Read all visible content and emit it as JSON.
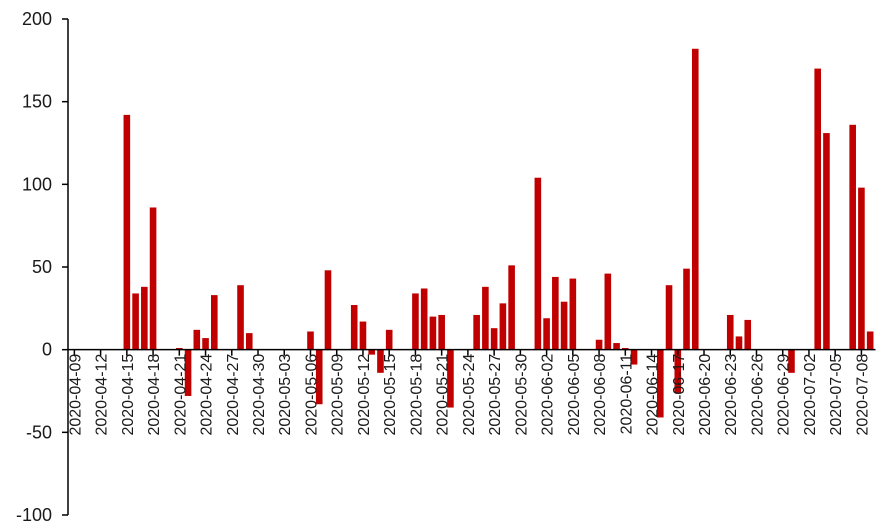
{
  "chart_data": {
    "type": "bar",
    "title": "",
    "xlabel": "",
    "ylabel": "",
    "ylim": [
      -100,
      200
    ],
    "yticks": [
      -100,
      -50,
      0,
      50,
      100,
      150,
      200
    ],
    "grid": false,
    "legend": "none",
    "bar_color": "#c00000",
    "x_start": "2020-04-09",
    "x_tick_labels": [
      "2020-04-09",
      "2020-04-12",
      "2020-04-15",
      "2020-04-18",
      "2020-04-21",
      "2020-04-24",
      "2020-04-27",
      "2020-04-30",
      "2020-05-03",
      "2020-05-06",
      "2020-05-09",
      "2020-05-12",
      "2020-05-15",
      "2020-05-18",
      "2020-05-21",
      "2020-05-24",
      "2020-05-27",
      "2020-05-30",
      "2020-06-02",
      "2020-06-05",
      "2020-06-08",
      "2020-06-11",
      "2020-06-14",
      "2020-06-17",
      "2020-06-20",
      "2020-06-23",
      "2020-06-26",
      "2020-06-29",
      "2020-07-02",
      "2020-07-05",
      "2020-07-08"
    ],
    "categories": [
      "2020-04-09",
      "2020-04-10",
      "2020-04-11",
      "2020-04-12",
      "2020-04-13",
      "2020-04-14",
      "2020-04-15",
      "2020-04-16",
      "2020-04-17",
      "2020-04-18",
      "2020-04-19",
      "2020-04-20",
      "2020-04-21",
      "2020-04-22",
      "2020-04-23",
      "2020-04-24",
      "2020-04-25",
      "2020-04-26",
      "2020-04-27",
      "2020-04-28",
      "2020-04-29",
      "2020-04-30",
      "2020-05-01",
      "2020-05-02",
      "2020-05-03",
      "2020-05-04",
      "2020-05-05",
      "2020-05-06",
      "2020-05-07",
      "2020-05-08",
      "2020-05-09",
      "2020-05-10",
      "2020-05-11",
      "2020-05-12",
      "2020-05-13",
      "2020-05-14",
      "2020-05-15",
      "2020-05-16",
      "2020-05-17",
      "2020-05-18",
      "2020-05-19",
      "2020-05-20",
      "2020-05-21",
      "2020-05-22",
      "2020-05-23",
      "2020-05-24",
      "2020-05-25",
      "2020-05-26",
      "2020-05-27",
      "2020-05-28",
      "2020-05-29",
      "2020-05-30",
      "2020-05-31",
      "2020-06-01",
      "2020-06-02",
      "2020-06-03",
      "2020-06-04",
      "2020-06-05",
      "2020-06-06",
      "2020-06-07",
      "2020-06-08",
      "2020-06-09",
      "2020-06-10",
      "2020-06-11",
      "2020-06-12",
      "2020-06-13",
      "2020-06-14",
      "2020-06-15",
      "2020-06-16",
      "2020-06-17",
      "2020-06-18",
      "2020-06-19",
      "2020-06-20",
      "2020-06-21",
      "2020-06-22",
      "2020-06-23",
      "2020-06-24",
      "2020-06-25",
      "2020-06-26",
      "2020-06-27",
      "2020-06-28",
      "2020-06-29",
      "2020-06-30",
      "2020-07-01",
      "2020-07-02",
      "2020-07-03",
      "2020-07-04",
      "2020-07-05",
      "2020-07-06",
      "2020-07-07",
      "2020-07-08",
      "2020-07-09"
    ],
    "values": [
      null,
      null,
      null,
      null,
      null,
      null,
      142,
      34,
      38,
      86,
      null,
      null,
      1,
      -28,
      12,
      7,
      33,
      null,
      null,
      39,
      10,
      null,
      null,
      null,
      null,
      null,
      null,
      11,
      -33,
      48,
      null,
      null,
      27,
      17,
      -3,
      -14,
      12,
      null,
      null,
      34,
      37,
      20,
      21,
      -35,
      null,
      null,
      21,
      38,
      13,
      28,
      51,
      null,
      null,
      104,
      19,
      44,
      29,
      43,
      null,
      null,
      6,
      46,
      4,
      1,
      -9,
      null,
      null,
      -41,
      39,
      -26,
      49,
      182,
      null,
      null,
      null,
      21,
      8,
      18,
      null,
      null,
      null,
      null,
      -14,
      null,
      null,
      170,
      131,
      null,
      null,
      136,
      98,
      11
    ]
  }
}
